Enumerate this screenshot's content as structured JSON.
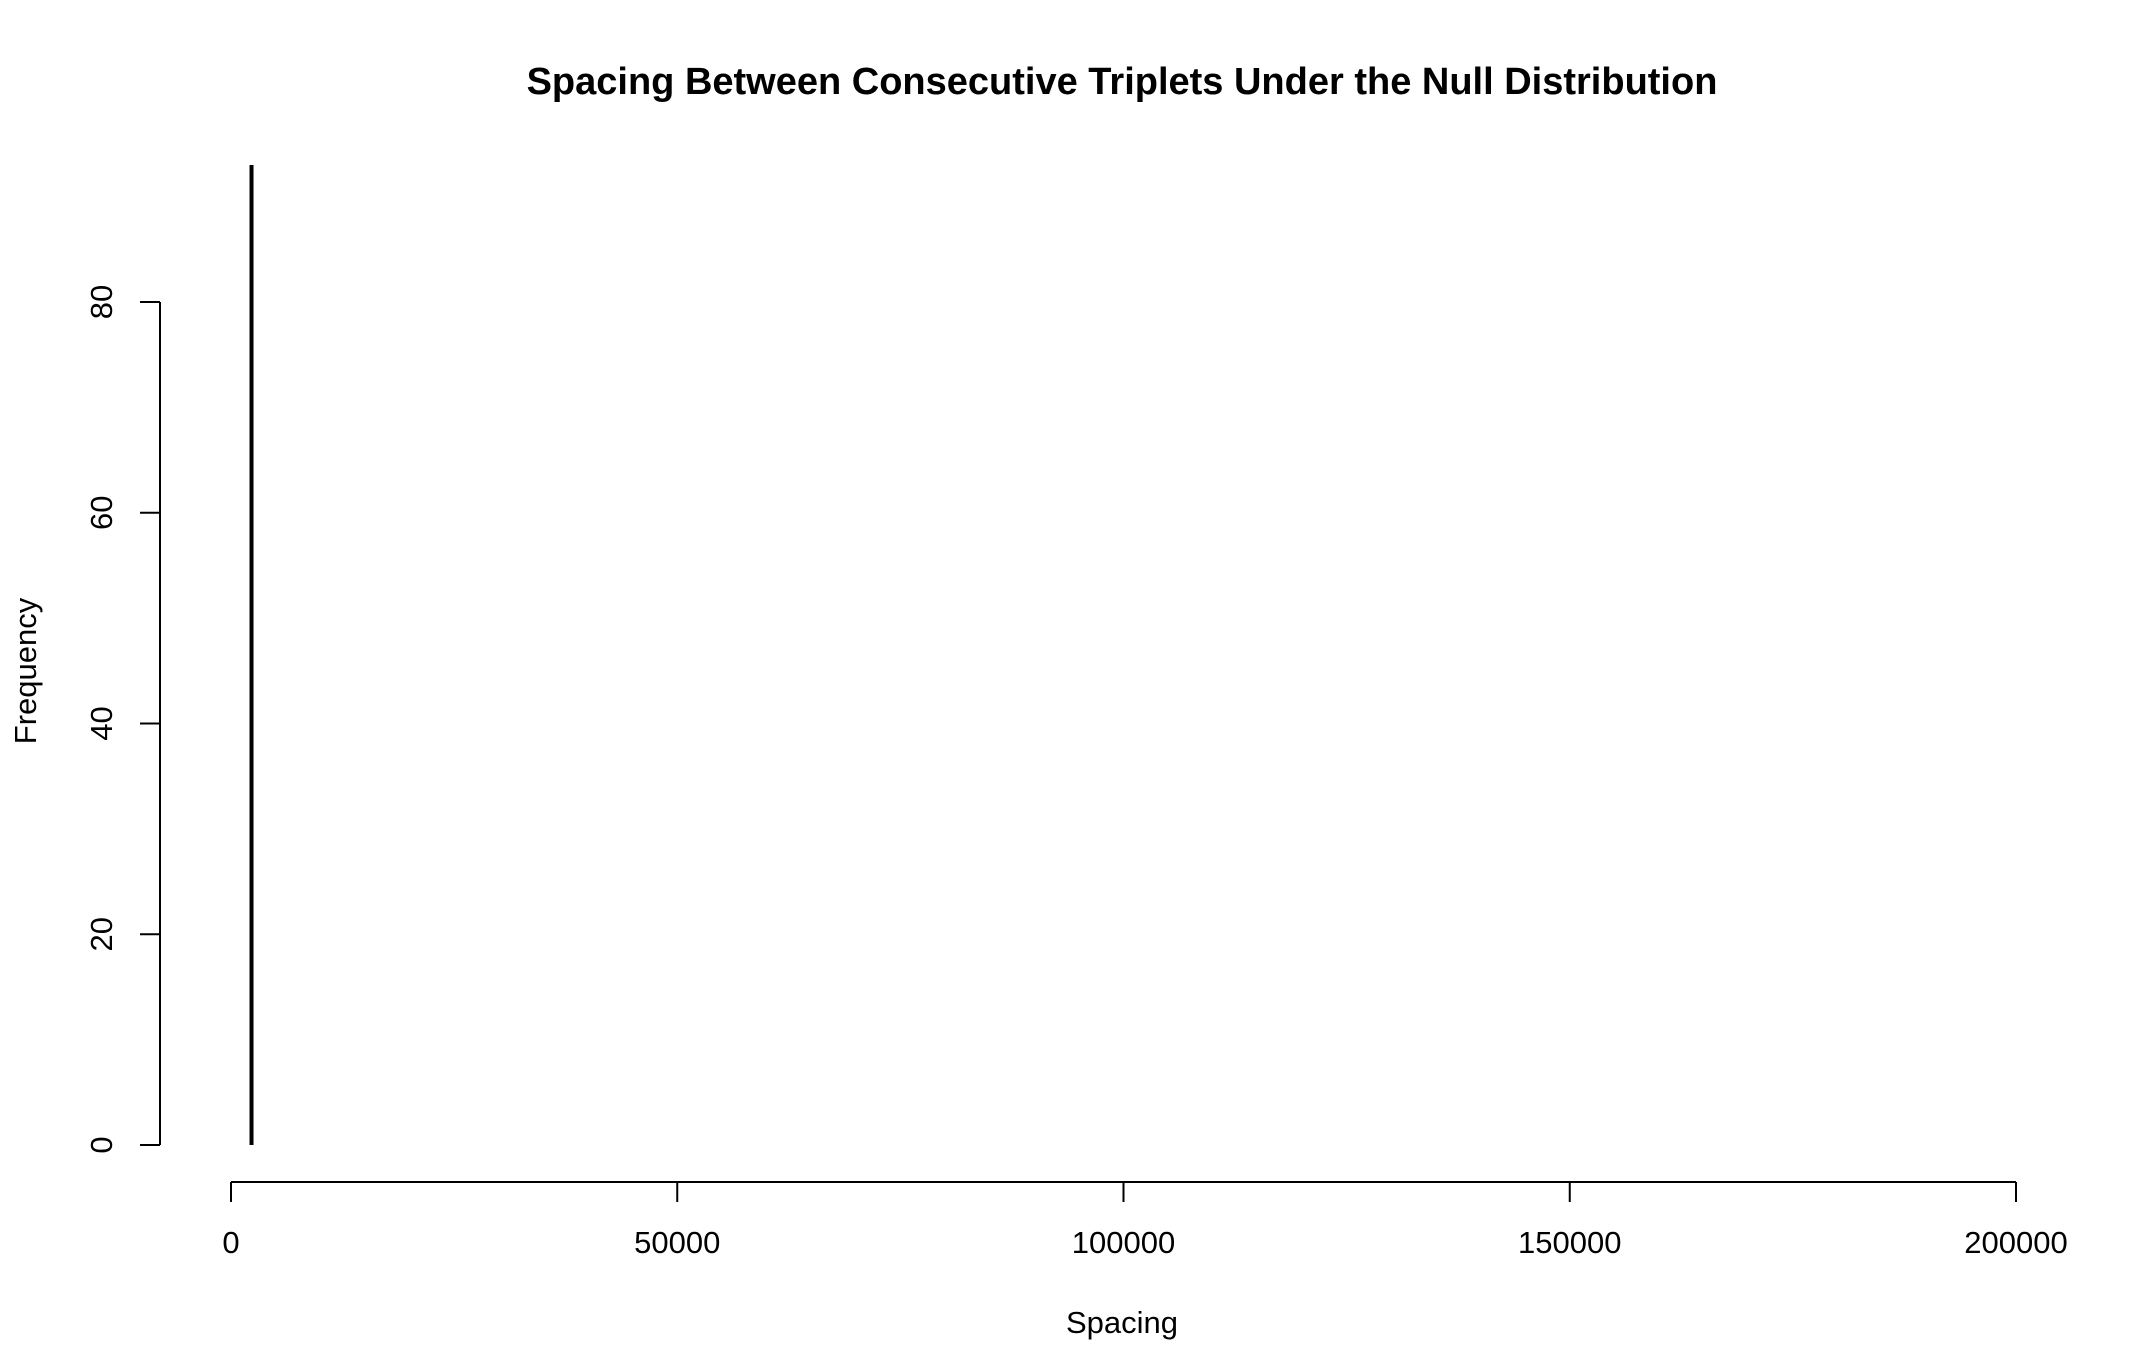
{
  "chart_data": {
    "type": "bar",
    "title": "Spacing Between Consecutive Triplets Under the Null Distribution",
    "xlabel": "Spacing",
    "ylabel": "Frequency",
    "xlim": [
      0,
      200000
    ],
    "ylim": [
      0,
      93
    ],
    "x_ticks": [
      0,
      50000,
      100000,
      150000,
      200000
    ],
    "x_tick_labels": [
      "0",
      "50000",
      "100000",
      "150000",
      "200000"
    ],
    "y_ticks": [
      0,
      20,
      40,
      60,
      80
    ],
    "y_tick_labels": [
      "0",
      "20",
      "40",
      "60",
      "80"
    ],
    "series": [
      {
        "x": [
          2300
        ],
        "values": [
          93
        ]
      }
    ],
    "grid": false,
    "legend": "none",
    "colors": {
      "bar": "#000000",
      "axis": "#000000",
      "background": "#ffffff"
    }
  }
}
